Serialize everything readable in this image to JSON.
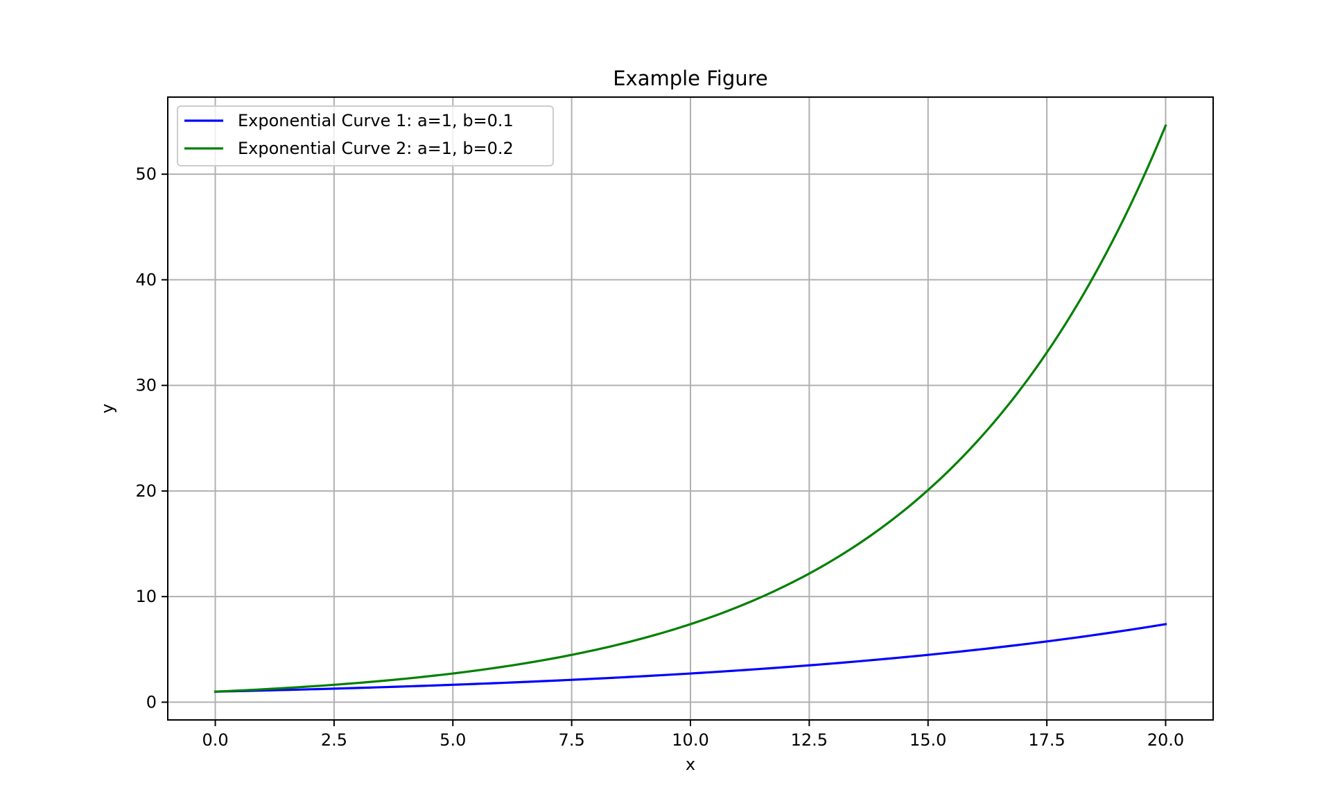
{
  "chart_data": {
    "type": "line",
    "title": "Example Figure",
    "xlabel": "x",
    "ylabel": "y",
    "xlim": [
      -1.0,
      21.0
    ],
    "ylim": [
      -1.68,
      57.3
    ],
    "grid": true,
    "legend_position": "top-left",
    "x_ticks": [
      0.0,
      2.5,
      5.0,
      7.5,
      10.0,
      12.5,
      15.0,
      17.5,
      20.0
    ],
    "x_tick_labels": [
      "0.0",
      "2.5",
      "5.0",
      "7.5",
      "10.0",
      "12.5",
      "15.0",
      "17.5",
      "20.0"
    ],
    "y_ticks": [
      0,
      10,
      20,
      30,
      40,
      50
    ],
    "y_tick_labels": [
      "0",
      "10",
      "20",
      "30",
      "40",
      "50"
    ],
    "series": [
      {
        "name": "Exponential Curve 1: a=1, b=0.1",
        "color": "#0000ff",
        "x": [
          0,
          1,
          2,
          3,
          4,
          5,
          6,
          7,
          8,
          9,
          10,
          11,
          12,
          13,
          14,
          15,
          16,
          17,
          18,
          19,
          20
        ],
        "y": [
          1.0,
          1.105,
          1.221,
          1.35,
          1.492,
          1.649,
          1.822,
          2.014,
          2.226,
          2.46,
          2.718,
          3.004,
          3.32,
          3.669,
          4.055,
          4.482,
          4.953,
          5.474,
          6.05,
          6.686,
          7.389
        ]
      },
      {
        "name": "Exponential Curve 2: a=1, b=0.2",
        "color": "#008000",
        "x": [
          0,
          1,
          2,
          3,
          4,
          5,
          6,
          7,
          8,
          9,
          10,
          11,
          12,
          13,
          14,
          15,
          16,
          17,
          18,
          19,
          20
        ],
        "y": [
          1.0,
          1.221,
          1.492,
          1.822,
          2.226,
          2.718,
          3.32,
          4.055,
          4.953,
          6.05,
          7.389,
          9.025,
          11.023,
          13.464,
          16.445,
          20.086,
          24.533,
          29.964,
          36.598,
          44.701,
          54.598
        ]
      }
    ]
  }
}
